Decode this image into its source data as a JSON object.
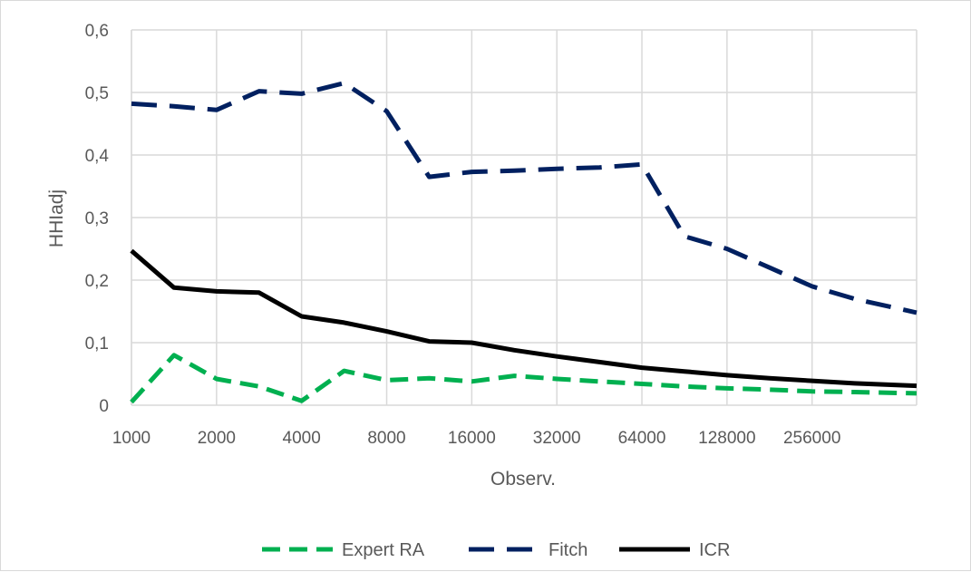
{
  "chart_data": {
    "type": "line",
    "xlabel": "Observ.",
    "ylabel": "HHIadj",
    "ylim": [
      0,
      0.6
    ],
    "yticks": [
      "0",
      "0,1",
      "0,2",
      "0,3",
      "0,4",
      "0,5",
      "0,6"
    ],
    "ytick_values": [
      0,
      0.1,
      0.2,
      0.3,
      0.4,
      0.5,
      0.6
    ],
    "x_scale": "log2",
    "x_range": [
      1000,
      600000
    ],
    "xticks": [
      "1000",
      "2000",
      "4000",
      "8000",
      "16000",
      "32000",
      "64000",
      "128000",
      "256000"
    ],
    "xtick_values": [
      1000,
      2000,
      4000,
      8000,
      16000,
      32000,
      64000,
      128000,
      256000
    ],
    "grid": true,
    "legend_position": "bottom",
    "x": [
      1000,
      1414,
      2000,
      2828,
      4000,
      5657,
      8000,
      11314,
      16000,
      22627,
      32000,
      45255,
      64000,
      90510,
      128000,
      181019,
      256000,
      362039,
      600000
    ],
    "series": [
      {
        "name": "Expert RA",
        "color": "#00b050",
        "dash": "dashed",
        "values": [
          0.005,
          0.08,
          0.042,
          0.03,
          0.007,
          0.055,
          0.04,
          0.043,
          0.038,
          0.047,
          0.042,
          0.038,
          0.034,
          0.03,
          0.027,
          0.025,
          0.022,
          0.021,
          0.019
        ]
      },
      {
        "name": "Fitch",
        "color": "#002060",
        "dash": "long-dashed",
        "values": [
          0.482,
          0.478,
          0.472,
          0.502,
          0.498,
          0.515,
          0.47,
          0.365,
          0.373,
          0.375,
          0.378,
          0.38,
          0.385,
          0.27,
          0.25,
          0.22,
          0.19,
          0.17,
          0.148
        ]
      },
      {
        "name": "ICR",
        "color": "#000000",
        "dash": "solid",
        "values": [
          0.247,
          0.188,
          0.182,
          0.18,
          0.142,
          0.132,
          0.118,
          0.102,
          0.1,
          0.088,
          0.078,
          0.069,
          0.06,
          0.054,
          0.048,
          0.043,
          0.039,
          0.035,
          0.031
        ]
      }
    ]
  }
}
